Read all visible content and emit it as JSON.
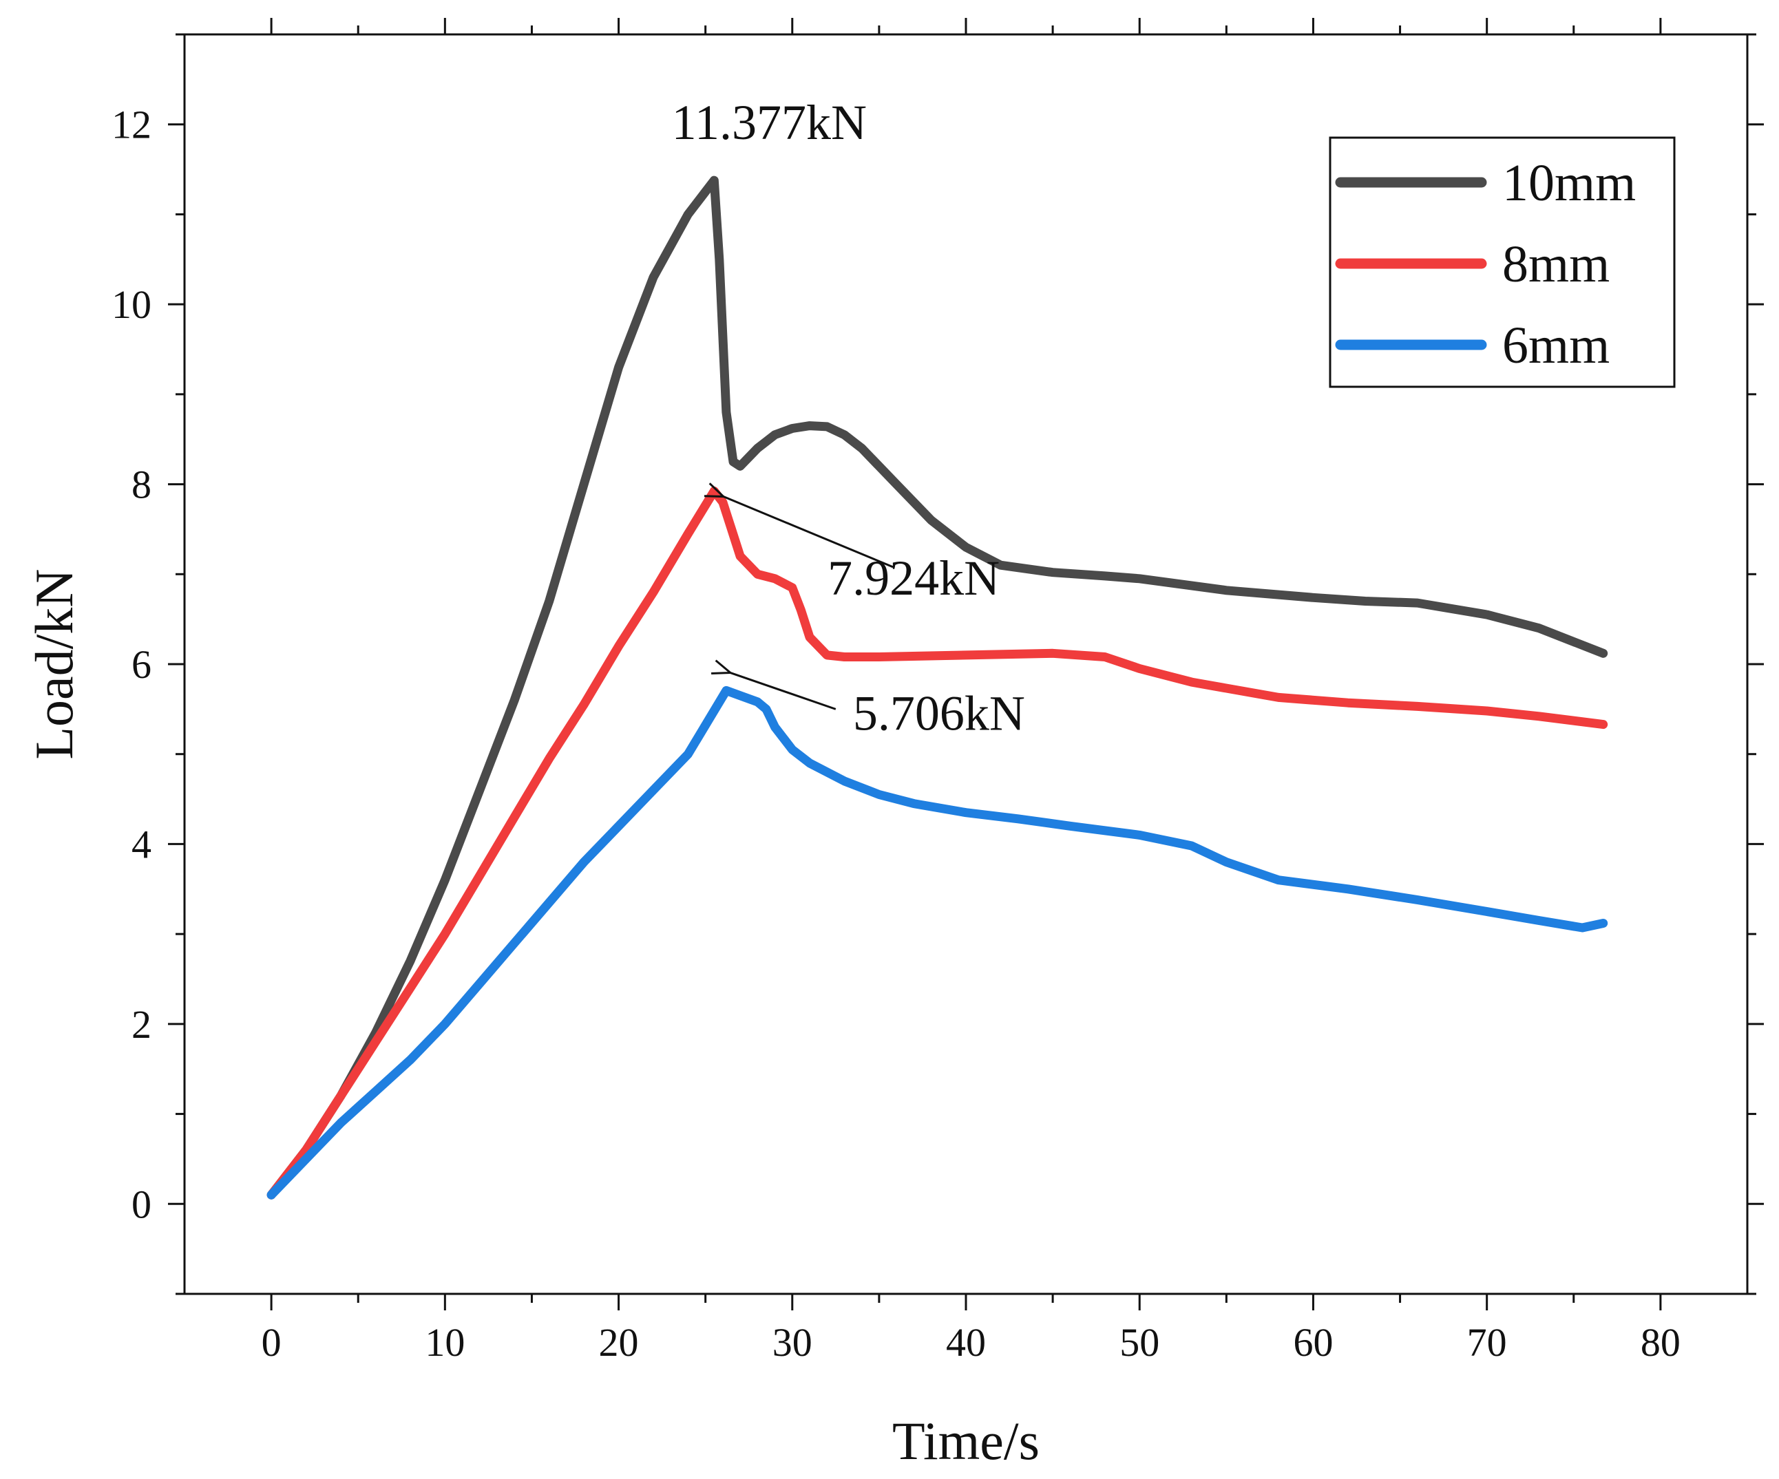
{
  "chart_data": {
    "type": "line",
    "xlabel": "Time/s",
    "ylabel": "Load/kN",
    "xlim": [
      -5,
      85
    ],
    "ylim": [
      -1,
      13
    ],
    "xticks": [
      0,
      10,
      20,
      30,
      40,
      50,
      60,
      70,
      80
    ],
    "yticks": [
      0,
      2,
      4,
      6,
      8,
      10,
      12
    ],
    "legend_position": "top-right",
    "series": [
      {
        "name": "10mm",
        "color": "#4a4a4a",
        "x": [
          0,
          2,
          4,
          6,
          8,
          10,
          12,
          14,
          16,
          18,
          20,
          22,
          24,
          25.5,
          25.8,
          26.2,
          26.6,
          27,
          28,
          29,
          30,
          31,
          32,
          33,
          34,
          36,
          38,
          40,
          42,
          45,
          48,
          50,
          55,
          60,
          63,
          66,
          70,
          73,
          76.7
        ],
        "y": [
          0.1,
          0.6,
          1.2,
          1.9,
          2.7,
          3.6,
          4.6,
          5.6,
          6.7,
          8.0,
          9.3,
          10.3,
          11.0,
          11.377,
          10.5,
          8.8,
          8.25,
          8.2,
          8.4,
          8.55,
          8.62,
          8.65,
          8.64,
          8.55,
          8.4,
          8.0,
          7.6,
          7.3,
          7.1,
          7.02,
          6.98,
          6.95,
          6.82,
          6.74,
          6.7,
          6.68,
          6.55,
          6.4,
          6.12
        ]
      },
      {
        "name": "8mm",
        "color": "#f03c3c",
        "x": [
          0,
          2,
          4,
          6,
          8,
          10,
          12,
          14,
          16,
          18,
          20,
          22,
          24,
          25.5,
          26,
          26.5,
          27,
          28,
          29,
          30,
          30.5,
          31,
          32,
          33,
          35,
          40,
          45,
          48,
          50,
          53,
          58,
          62,
          66,
          70,
          73,
          76.7
        ],
        "y": [
          0.1,
          0.6,
          1.2,
          1.8,
          2.4,
          3.0,
          3.65,
          4.3,
          4.95,
          5.55,
          6.2,
          6.8,
          7.45,
          7.924,
          7.8,
          7.5,
          7.2,
          7.0,
          6.95,
          6.85,
          6.6,
          6.3,
          6.1,
          6.08,
          6.08,
          6.1,
          6.12,
          6.08,
          5.95,
          5.8,
          5.63,
          5.57,
          5.53,
          5.48,
          5.42,
          5.33
        ]
      },
      {
        "name": "6mm",
        "color": "#1f7fe0",
        "x": [
          0,
          2,
          4,
          6,
          8,
          10,
          12,
          14,
          16,
          18,
          20,
          22,
          24,
          26.2,
          27,
          28,
          28.5,
          29,
          30,
          31,
          33,
          35,
          37,
          40,
          43,
          46,
          50,
          53,
          55,
          58,
          62,
          66,
          70,
          73,
          75.5,
          76.7
        ],
        "y": [
          0.1,
          0.5,
          0.9,
          1.25,
          1.6,
          2.0,
          2.45,
          2.9,
          3.35,
          3.8,
          4.2,
          4.6,
          5.0,
          5.706,
          5.65,
          5.58,
          5.5,
          5.3,
          5.05,
          4.9,
          4.7,
          4.55,
          4.45,
          4.35,
          4.28,
          4.2,
          4.1,
          3.98,
          3.8,
          3.6,
          3.5,
          3.38,
          3.25,
          3.15,
          3.07,
          3.12
        ]
      }
    ],
    "annotations": [
      {
        "text": "11.377kN",
        "x": 25.5,
        "y": 11.377,
        "arrow": false
      },
      {
        "text": "7.924kN",
        "x": 25.8,
        "y": 7.924,
        "arrow": true,
        "from_x": 35.8,
        "from_y": 7.08
      },
      {
        "text": "5.706kN",
        "x": 26.2,
        "y": 5.95,
        "arrow": true,
        "from_x": 32.5,
        "from_y": 5.5
      }
    ]
  }
}
